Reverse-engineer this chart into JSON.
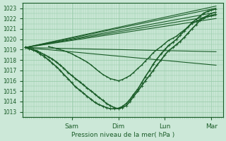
{
  "bg_color": "#cce8d8",
  "plot_bg_color": "#cce8d8",
  "grid_color": "#99ccaa",
  "line_color": "#1a5c28",
  "xlabel_text": "Pression niveau de la mer( hPa )",
  "xtick_labels": [
    "Sam",
    "Dim",
    "Lun",
    "Mar"
  ],
  "xtick_positions": [
    1.0,
    2.0,
    3.0,
    4.0
  ],
  "ylim": [
    1012.5,
    1023.5
  ],
  "yticks": [
    1013,
    1014,
    1015,
    1016,
    1017,
    1018,
    1019,
    1020,
    1021,
    1022,
    1023
  ],
  "xlim": [
    -0.05,
    4.25
  ],
  "straight_lines": [
    {
      "x": [
        0.0,
        4.1
      ],
      "y": [
        1019.2,
        1022.3
      ],
      "lw": 0.8
    },
    {
      "x": [
        0.0,
        4.1
      ],
      "y": [
        1019.2,
        1022.6
      ],
      "lw": 0.8
    },
    {
      "x": [
        0.0,
        4.1
      ],
      "y": [
        1019.2,
        1023.0
      ],
      "lw": 0.8
    },
    {
      "x": [
        0.0,
        4.1
      ],
      "y": [
        1019.2,
        1023.2
      ],
      "lw": 0.8
    },
    {
      "x": [
        0.0,
        4.1
      ],
      "y": [
        1019.2,
        1022.0
      ],
      "lw": 0.8
    },
    {
      "x": [
        0.0,
        4.1
      ],
      "y": [
        1019.2,
        1017.5
      ],
      "lw": 0.8
    },
    {
      "x": [
        0.0,
        4.1
      ],
      "y": [
        1019.2,
        1018.8
      ],
      "lw": 0.8
    }
  ],
  "curved_series": [
    {
      "x": [
        0.0,
        0.08,
        0.17,
        0.25,
        0.33,
        0.42,
        0.5,
        0.58,
        0.67,
        0.75,
        0.83,
        0.92,
        1.0,
        1.08,
        1.17,
        1.25,
        1.33,
        1.42,
        1.5,
        1.58,
        1.67,
        1.75,
        1.83,
        1.92,
        2.0,
        2.08,
        2.17,
        2.25,
        2.33,
        2.42,
        2.5,
        2.58,
        2.67,
        2.75,
        2.83,
        2.92,
        3.0,
        3.08,
        3.17,
        3.25,
        3.33,
        3.42,
        3.5,
        3.58,
        3.67,
        3.75,
        3.83,
        3.92,
        4.0,
        4.08
      ],
      "y": [
        1019.2,
        1019.1,
        1019.0,
        1018.9,
        1018.7,
        1018.5,
        1018.3,
        1018.1,
        1017.8,
        1017.5,
        1017.2,
        1016.8,
        1016.5,
        1016.2,
        1015.9,
        1015.6,
        1015.3,
        1015.0,
        1014.7,
        1014.4,
        1014.1,
        1013.8,
        1013.6,
        1013.4,
        1013.3,
        1013.4,
        1013.6,
        1014.0,
        1014.5,
        1015.0,
        1015.5,
        1016.0,
        1016.5,
        1017.0,
        1017.5,
        1018.0,
        1018.5,
        1018.9,
        1019.2,
        1019.5,
        1019.8,
        1020.2,
        1020.6,
        1021.0,
        1021.4,
        1021.8,
        1022.0,
        1022.2,
        1022.3,
        1022.4
      ],
      "lw": 1.2,
      "marker": "+",
      "ms": 2.5
    },
    {
      "x": [
        0.0,
        0.08,
        0.17,
        0.25,
        0.33,
        0.42,
        0.5,
        0.58,
        0.67,
        0.75,
        0.83,
        0.92,
        1.0,
        1.08,
        1.17,
        1.25,
        1.33,
        1.42,
        1.5,
        1.58,
        1.67,
        1.75,
        1.83,
        1.92,
        2.0,
        2.08,
        2.17,
        2.25,
        2.33,
        2.42,
        2.5,
        2.58,
        2.67,
        2.75,
        2.83,
        2.92,
        3.0,
        3.08,
        3.17,
        3.25,
        3.33,
        3.42,
        3.5,
        3.58,
        3.67,
        3.75,
        3.83,
        3.92,
        4.0,
        4.08
      ],
      "y": [
        1019.2,
        1019.1,
        1018.95,
        1018.8,
        1018.55,
        1018.3,
        1018.0,
        1017.7,
        1017.35,
        1017.0,
        1016.6,
        1016.2,
        1015.8,
        1015.4,
        1015.1,
        1014.8,
        1014.5,
        1014.2,
        1013.9,
        1013.7,
        1013.55,
        1013.4,
        1013.3,
        1013.3,
        1013.35,
        1013.5,
        1013.8,
        1014.2,
        1014.7,
        1015.2,
        1015.8,
        1016.4,
        1017.0,
        1017.6,
        1018.1,
        1018.6,
        1019.0,
        1019.4,
        1019.7,
        1020.0,
        1020.4,
        1020.8,
        1021.2,
        1021.6,
        1021.9,
        1022.2,
        1022.5,
        1022.7,
        1022.8,
        1022.9
      ],
      "lw": 1.2,
      "marker": "+",
      "ms": 2.5
    },
    {
      "x": [
        0.5,
        0.58,
        0.67,
        0.75,
        0.83,
        0.92,
        1.0,
        1.08,
        1.17,
        1.25,
        1.33,
        1.42,
        1.5,
        1.58,
        1.67,
        1.75,
        1.83,
        1.92,
        2.0,
        2.08,
        2.17,
        2.25,
        2.33,
        2.42,
        2.5,
        2.58,
        2.67,
        2.75,
        2.83,
        2.92,
        3.0,
        3.08,
        3.17,
        3.25,
        3.33,
        3.42,
        3.5,
        3.58,
        3.67,
        3.75,
        3.83,
        3.92,
        4.0,
        4.08
      ],
      "y": [
        1019.3,
        1019.2,
        1019.1,
        1019.0,
        1018.9,
        1018.75,
        1018.6,
        1018.4,
        1018.2,
        1018.0,
        1017.8,
        1017.5,
        1017.2,
        1016.9,
        1016.6,
        1016.4,
        1016.2,
        1016.1,
        1016.0,
        1016.1,
        1016.3,
        1016.5,
        1016.8,
        1017.2,
        1017.5,
        1017.9,
        1018.3,
        1018.7,
        1019.0,
        1019.3,
        1019.6,
        1019.9,
        1020.1,
        1020.3,
        1020.6,
        1020.9,
        1021.2,
        1021.5,
        1021.7,
        1021.9,
        1022.1,
        1022.3,
        1022.5,
        1022.6
      ],
      "lw": 1.0,
      "marker": "+",
      "ms": 2.0
    }
  ]
}
